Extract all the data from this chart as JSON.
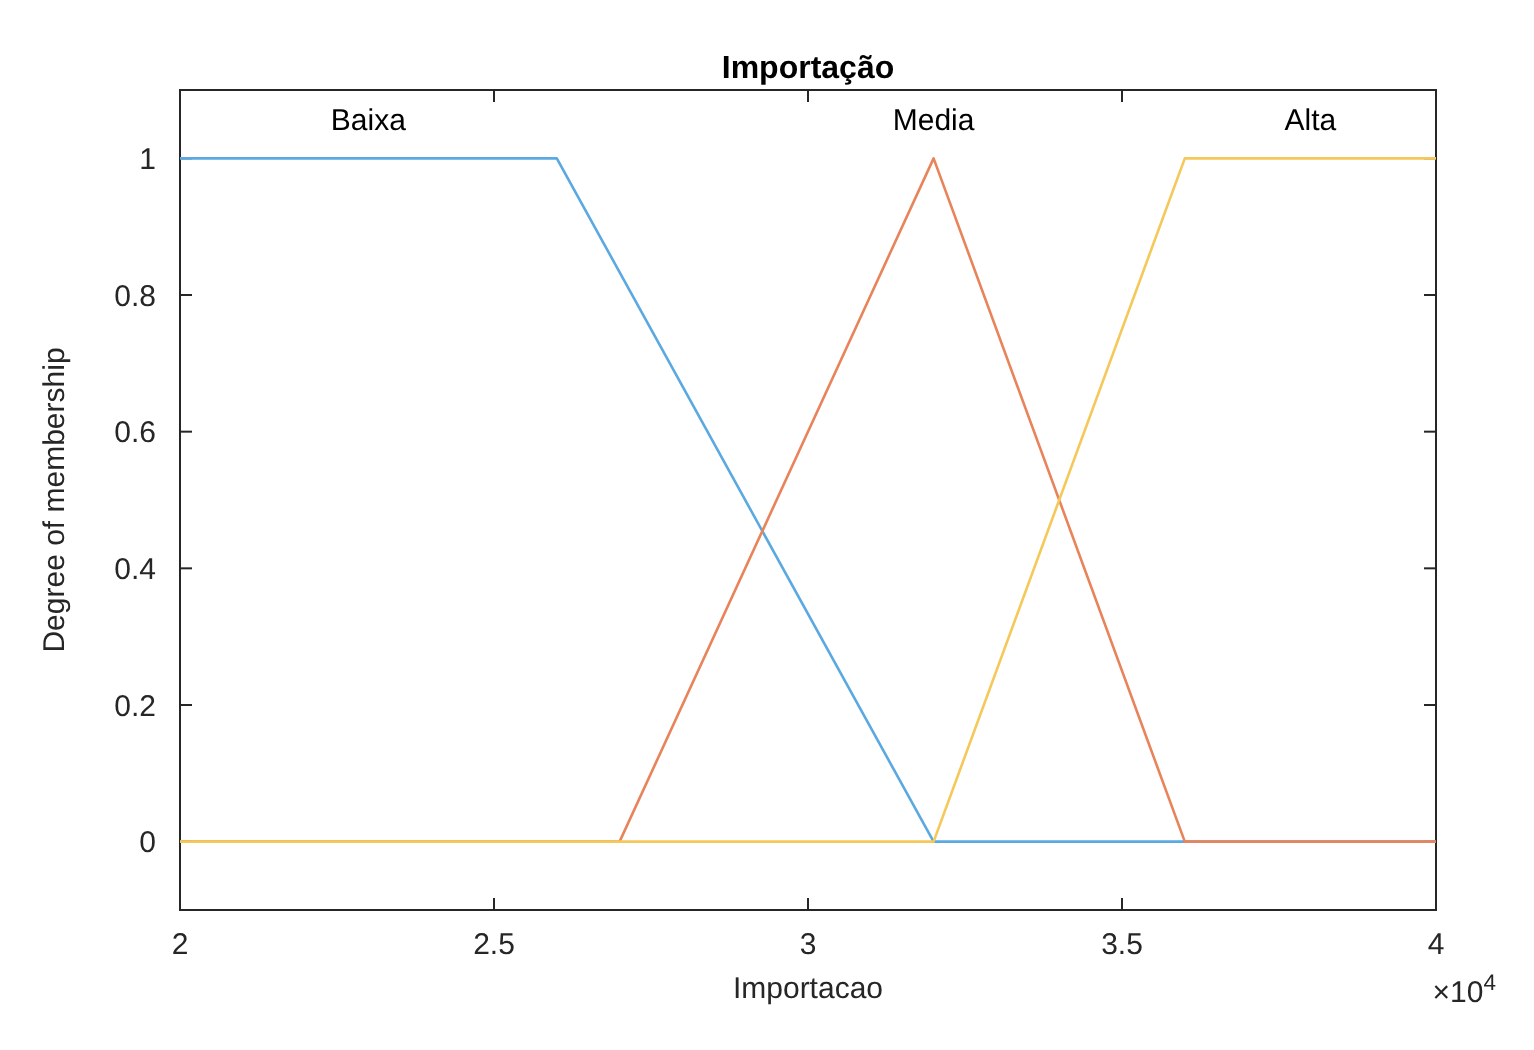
{
  "chart_data": {
    "type": "line",
    "title": "Importação",
    "xlabel": "Importacao",
    "ylabel": "Degree of membership",
    "annotations": [
      "×10$^{4}$"
    ],
    "xlim": [
      2,
      4
    ],
    "xticks": [
      2,
      2.5,
      3,
      3.5,
      4
    ],
    "ylim": [
      -0.1,
      1.1
    ],
    "yticks": [
      0,
      0.2,
      0.4,
      0.6,
      0.8,
      1
    ],
    "grid": false,
    "marker": "none",
    "line_style": "solid",
    "series": [
      {
        "name": "Baixa",
        "color": "#5aa9e0",
        "x": [
          2,
          2.6,
          3.2,
          4
        ],
        "values": [
          1,
          1,
          0,
          0
        ]
      },
      {
        "name": "Media",
        "color": "#e8835a",
        "x": [
          2,
          2.7,
          3.2,
          3.6,
          4
        ],
        "values": [
          0,
          0,
          1,
          0,
          0
        ]
      },
      {
        "name": "Alta",
        "color": "#f5c85a",
        "x": [
          2,
          3.2,
          3.6,
          4
        ],
        "values": [
          0,
          0,
          1,
          1
        ]
      }
    ]
  }
}
